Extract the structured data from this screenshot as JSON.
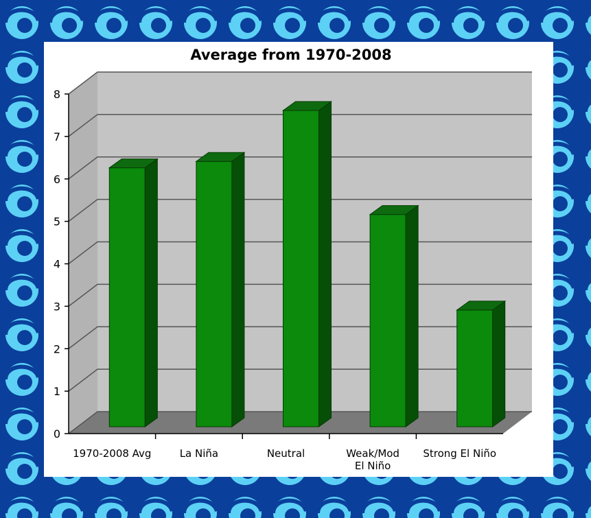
{
  "colors": {
    "border_dark": "#0a3f9b",
    "border_light": "#5dd1f5",
    "bar_front": "#0b8a0b",
    "bar_side": "#064f06",
    "bar_top": "#0e6a0e",
    "plot_wall": "#c4c4c4",
    "plot_floor": "#7a7a7a"
  },
  "chart_data": {
    "type": "bar",
    "title": "Average from 1970-2008",
    "xlabel": "",
    "ylabel": "",
    "ylim": [
      0,
      8
    ],
    "yticks": [
      "0",
      "1",
      "2",
      "3",
      "4",
      "5",
      "6",
      "7",
      "8"
    ],
    "categories": [
      [
        "1970-2008 Avg"
      ],
      [
        "La Niña"
      ],
      [
        "Neutral"
      ],
      [
        "Weak/Mod",
        "El Niño"
      ],
      [
        "Strong El Niño"
      ]
    ],
    "values": [
      6.1,
      6.25,
      7.45,
      5.0,
      2.75
    ],
    "grid": true,
    "legend": "none",
    "style": "3d"
  }
}
